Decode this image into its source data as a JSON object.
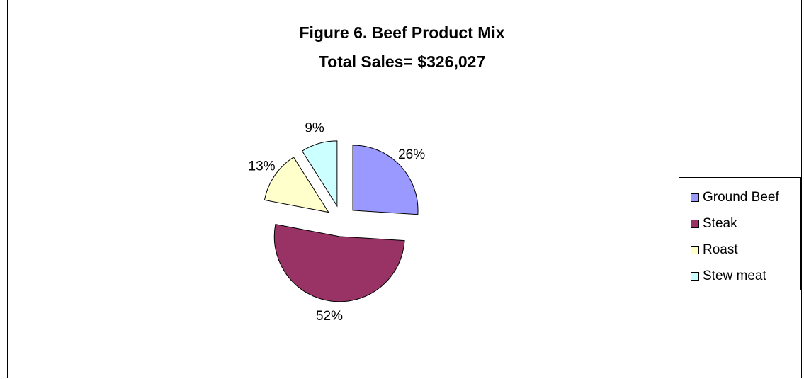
{
  "chart_data": {
    "type": "pie",
    "title": "Figure 6. Beef Product Mix",
    "subtitle": "Total Sales= $326,027",
    "slices": [
      {
        "name": "Ground Beef",
        "value": 26,
        "label": "26%",
        "color": "#9999ff"
      },
      {
        "name": "Steak",
        "value": 52,
        "label": "52%",
        "color": "#993366"
      },
      {
        "name": "Roast",
        "value": 13,
        "label": "13%",
        "color": "#ffffcc"
      },
      {
        "name": "Stew meat",
        "value": 9,
        "label": "9%",
        "color": "#ccffff"
      }
    ],
    "exploded": true,
    "legend_position": "right"
  }
}
